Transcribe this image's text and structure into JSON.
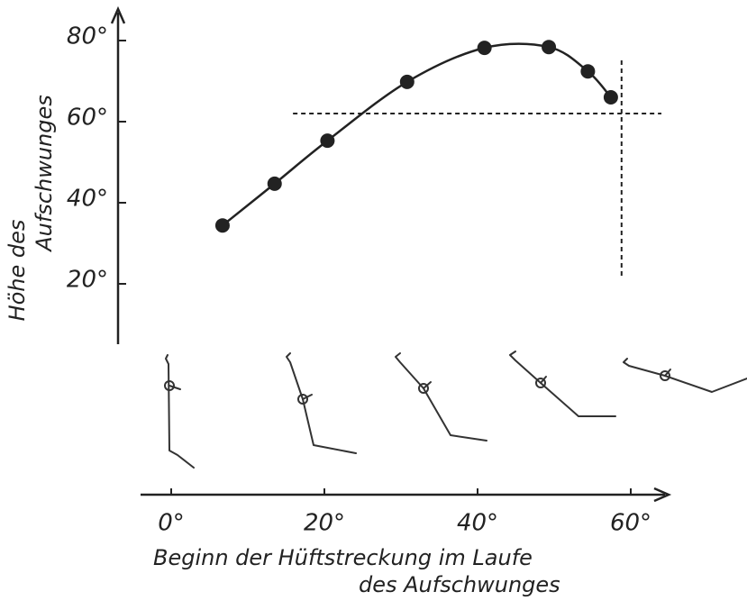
{
  "chart_data": {
    "type": "line",
    "x_label": [
      "Beginn der Hüftstreckung  im Laufe",
      "des Aufschwunges"
    ],
    "y_label": [
      "Höhe des",
      "Aufschwunges"
    ],
    "x": [
      6.7,
      13.5,
      20.4,
      30.8,
      40.9,
      49.3,
      54.4,
      57.4
    ],
    "values": [
      34.4,
      44.7,
      55.3,
      69.8,
      78.2,
      78.4,
      72.4,
      66
    ],
    "color": "#222222",
    "xlim": [
      -4,
      64
    ],
    "ylim": [
      5,
      88
    ],
    "xticks": [
      {
        "value": 0,
        "label": "0°"
      },
      {
        "value": 20,
        "label": "20°"
      },
      {
        "value": 40,
        "label": "40°"
      },
      {
        "value": 60,
        "label": "60°"
      }
    ],
    "yticks": [
      {
        "value": 20,
        "label": "20°"
      },
      {
        "value": 40,
        "label": "40°"
      },
      {
        "value": 60,
        "label": "60°"
      },
      {
        "value": 80,
        "label": "80°"
      }
    ],
    "ref_h": {
      "y": 62,
      "x": [
        15.9,
        64
      ]
    },
    "ref_v": {
      "x": 58.8,
      "y": [
        22,
        76
      ]
    }
  }
}
